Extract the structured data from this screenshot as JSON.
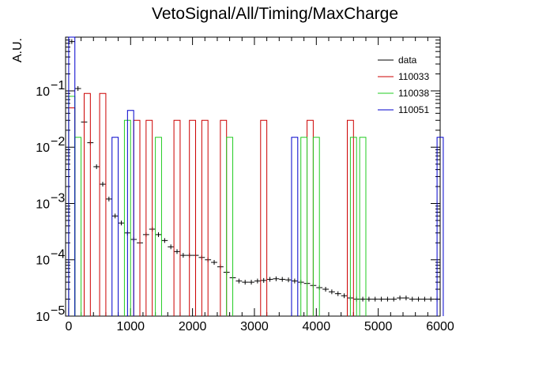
{
  "chart_data": {
    "type": "histogram",
    "title": "VetoSignal/All/Timing/MaxCharge",
    "xlabel": "",
    "ylabel": "A.U.",
    "xlim": [
      -50,
      6000
    ],
    "ylim": [
      1e-05,
      0.9
    ],
    "log_y": true,
    "grid": false,
    "legend_position": "top-right",
    "x_ticks": [
      0,
      1000,
      2000,
      3000,
      4000,
      5000,
      6000
    ],
    "y_tick_labels": [
      {
        "value": 0.1,
        "base": "10",
        "exp": "−1"
      },
      {
        "value": 0.01,
        "base": "10",
        "exp": "−2"
      },
      {
        "value": 0.001,
        "base": "10",
        "exp": "−3"
      },
      {
        "value": 0.0001,
        "base": "10",
        "exp": "−4"
      },
      {
        "value": 1e-05,
        "base": "10",
        "exp": "−5"
      }
    ],
    "bin_width": 100,
    "series": [
      {
        "name": "data",
        "color": "#000000",
        "style": "errorbar",
        "x": [
          0,
          100,
          200,
          300,
          400,
          500,
          600,
          700,
          800,
          900,
          1000,
          1100,
          1200,
          1300,
          1400,
          1500,
          1600,
          1700,
          1800,
          1900,
          2000,
          2100,
          2200,
          2300,
          2400,
          2500,
          2600,
          2700,
          2800,
          2900,
          3000,
          3100,
          3200,
          3300,
          3400,
          3500,
          3600,
          3700,
          3800,
          3900,
          4000,
          4100,
          4200,
          4300,
          4400,
          4500,
          4600,
          4700,
          4800,
          4900,
          5000,
          5100,
          5200,
          5300,
          5400,
          5500,
          5600,
          5700,
          5800,
          5900
        ],
        "y": [
          0.75,
          0.11,
          0.028,
          0.012,
          0.0045,
          0.0022,
          0.0012,
          0.0006,
          0.00045,
          0.0003,
          0.00023,
          0.0002,
          0.00028,
          0.00035,
          0.00028,
          0.00022,
          0.00017,
          0.00014,
          0.00012,
          0.00012,
          0.00012,
          0.00011,
          0.0001,
          9e-05,
          7.5e-05,
          6e-05,
          4.8e-05,
          4.2e-05,
          4e-05,
          4e-05,
          4.2e-05,
          4.3e-05,
          4.5e-05,
          4.6e-05,
          4.5e-05,
          4.4e-05,
          4.2e-05,
          4e-05,
          3.8e-05,
          3.5e-05,
          3.2e-05,
          3e-05,
          2.7e-05,
          2.5e-05,
          2.3e-05,
          2.1e-05,
          2e-05,
          2e-05,
          2e-05,
          2e-05,
          2e-05,
          2e-05,
          2e-05,
          2.1e-05,
          2.1e-05,
          2e-05,
          2e-05,
          2e-05,
          2e-05,
          2e-05
        ]
      },
      {
        "name": "110033",
        "color": "#cc0000",
        "style": "step",
        "x": [
          0,
          250,
          500,
          1050,
          1250,
          1700,
          1950,
          2150,
          2450,
          3100,
          3850,
          4500
        ],
        "y": [
          0.05,
          0.09,
          0.09,
          0.03,
          0.03,
          0.03,
          0.03,
          0.03,
          0.03,
          0.03,
          0.03,
          0.03
        ]
      },
      {
        "name": "110038",
        "color": "#22cc22",
        "style": "step",
        "x": [
          0,
          100,
          900,
          1400,
          2550,
          3750,
          3950,
          4550,
          4700
        ],
        "y": [
          0.08,
          0.015,
          0.03,
          0.015,
          0.015,
          0.015,
          0.015,
          0.015,
          0.015
        ]
      },
      {
        "name": "110051",
        "color": "#0000cc",
        "style": "step",
        "x": [
          0,
          700,
          950,
          3600,
          5950
        ],
        "y": [
          0.9,
          0.015,
          0.045,
          0.015,
          0.015
        ]
      }
    ]
  }
}
